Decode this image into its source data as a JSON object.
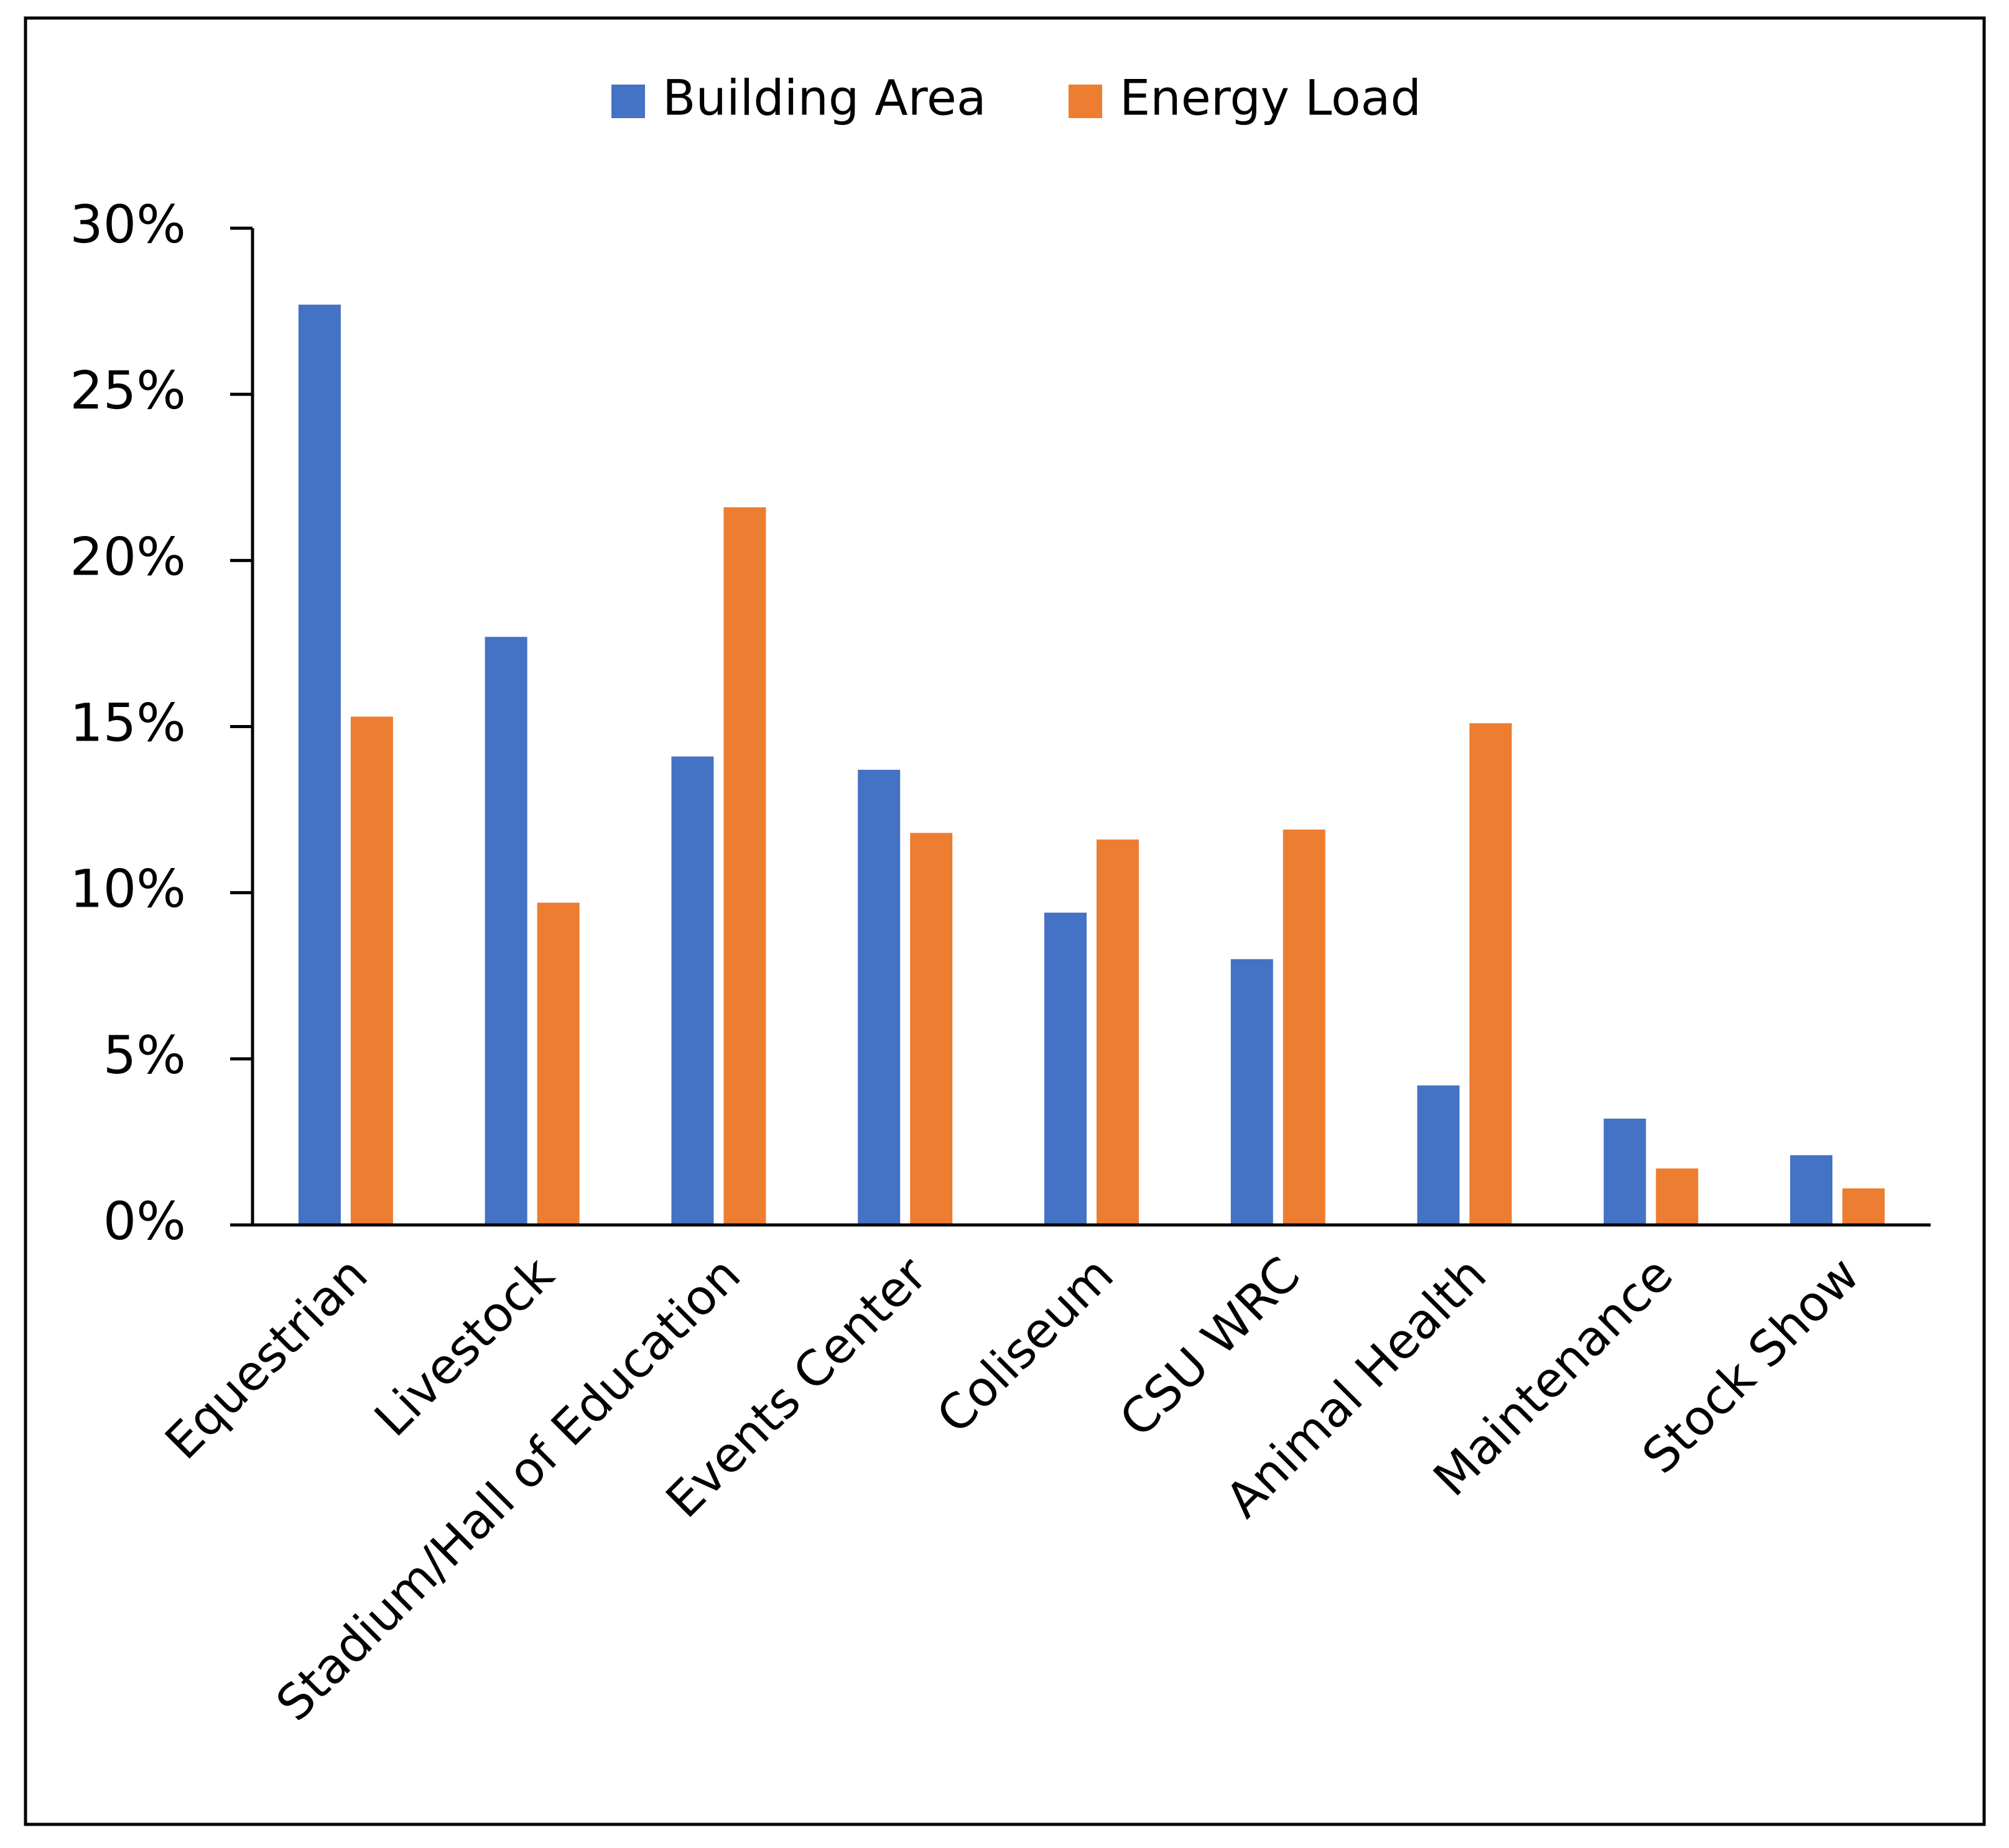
{
  "chart_data": {
    "type": "bar",
    "categories": [
      "Equestrian",
      "Livestock",
      "Stadium/Hall of Education",
      "Events Center",
      "Coliseum",
      "CSU WRC",
      "Animal Health",
      "Maintenance",
      "Stock Show"
    ],
    "series": [
      {
        "name": "Building Area",
        "color": "#4472c4",
        "values": [
          27.7,
          17.7,
          14.1,
          13.7,
          9.4,
          8.0,
          4.2,
          3.2,
          2.1
        ]
      },
      {
        "name": "Energy Load",
        "color": "#ed7d31",
        "values": [
          15.3,
          9.7,
          21.6,
          11.8,
          11.6,
          11.9,
          15.1,
          1.7,
          1.1
        ]
      }
    ],
    "ylim": [
      0,
      30
    ],
    "yticks": [
      {
        "value": 0,
        "label": "0%"
      },
      {
        "value": 5,
        "label": "5%"
      },
      {
        "value": 10,
        "label": "10%"
      },
      {
        "value": 15,
        "label": "15%"
      },
      {
        "value": 20,
        "label": "20%"
      },
      {
        "value": 25,
        "label": "25%"
      },
      {
        "value": 30,
        "label": "30%"
      }
    ],
    "legend": "top"
  }
}
